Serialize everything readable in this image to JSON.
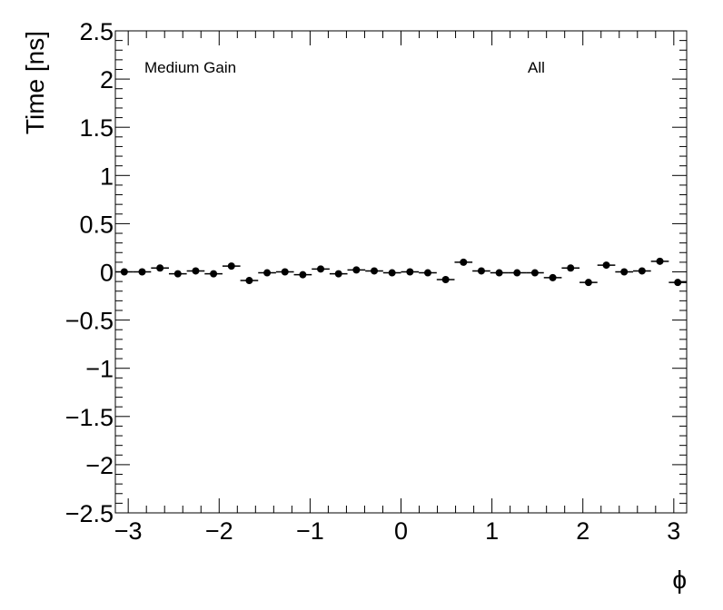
{
  "chart_data": {
    "type": "scatter",
    "xlabel": "ϕ",
    "ylabel": "Time [ns]",
    "xlim": [
      -3.1416,
      3.1416
    ],
    "ylim": [
      -2.5,
      2.5
    ],
    "x_ticks": [
      -3,
      -2,
      -1,
      0,
      1,
      2,
      3
    ],
    "x_tick_labels": [
      "−3",
      "−2",
      "−1",
      "0",
      "1",
      "2",
      "3"
    ],
    "y_ticks": [
      -2.5,
      -2,
      -1.5,
      -1,
      -0.5,
      0,
      0.5,
      1,
      1.5,
      2,
      2.5
    ],
    "y_tick_labels": [
      "−2.5",
      "−2",
      "−1.5",
      "−1",
      "−0.5",
      "0",
      "0.5",
      "1",
      "1.5",
      "2",
      "2.5"
    ],
    "annotations": [
      "Medium Gain",
      "All"
    ],
    "grid": false,
    "marker_color": "#000000",
    "series": [
      {
        "bin_width": 0.19635,
        "x": [
          -3.0434,
          -2.8471,
          -2.6507,
          -2.4544,
          -2.258,
          -2.0617,
          -1.8653,
          -1.669,
          -1.4726,
          -1.2763,
          -1.0799,
          -0.8836,
          -0.6872,
          -0.4909,
          -0.2945,
          -0.0982,
          0.0982,
          0.2945,
          0.4909,
          0.6872,
          0.8836,
          1.0799,
          1.2763,
          1.4726,
          1.669,
          1.8653,
          2.0617,
          2.258,
          2.4544,
          2.6507,
          2.8471,
          3.0434
        ],
        "y": [
          0.0,
          0.0,
          0.04,
          -0.02,
          0.01,
          -0.02,
          0.06,
          -0.09,
          -0.01,
          0.0,
          -0.03,
          0.03,
          -0.02,
          0.02,
          0.01,
          -0.01,
          0.0,
          -0.01,
          -0.08,
          0.1,
          0.01,
          -0.01,
          -0.01,
          -0.01,
          -0.06,
          0.04,
          -0.11,
          0.07,
          0.0,
          0.01,
          0.11,
          -0.11
        ]
      }
    ]
  }
}
